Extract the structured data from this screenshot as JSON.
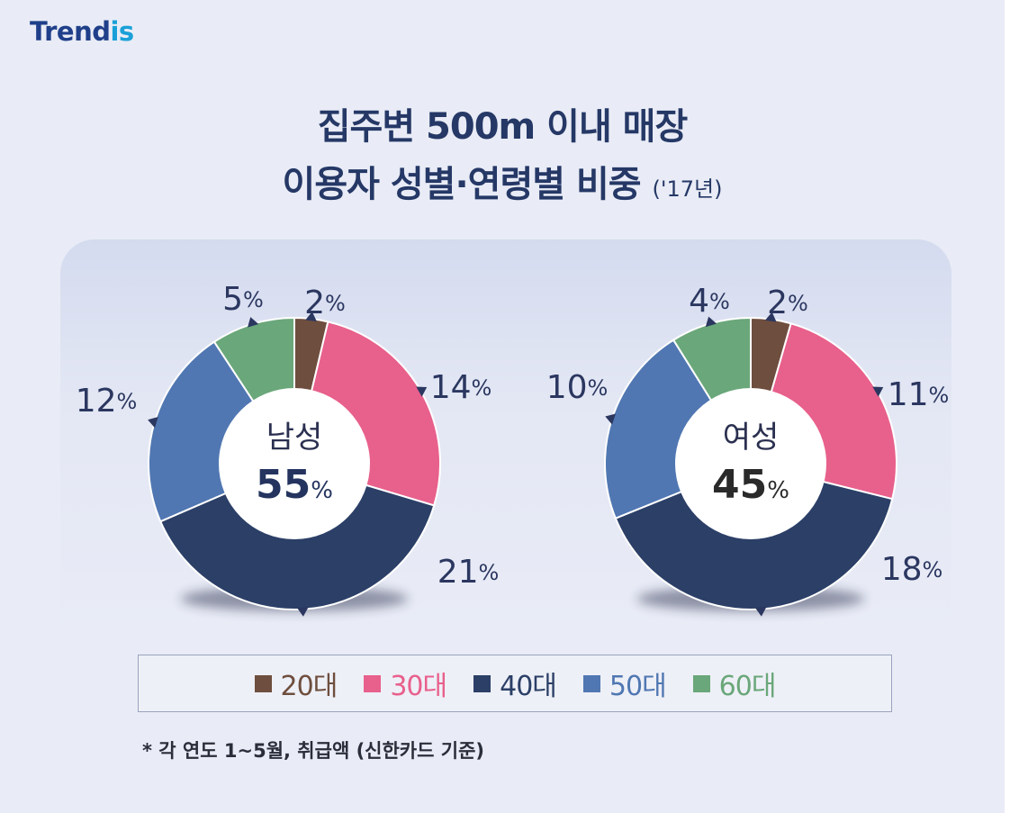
{
  "logo": {
    "part1": "Trend",
    "part2": "is"
  },
  "title": {
    "line1": "집주변 500m 이내 매장",
    "line2": "이용자 성별·연령별 비중",
    "year": "('17년)"
  },
  "chart_data": [
    {
      "type": "pie",
      "center_label": "남성",
      "center_value": "55",
      "center_unit": "%",
      "categories": [
        "20대",
        "30대",
        "40대",
        "50대",
        "60대"
      ],
      "values": [
        2,
        14,
        21,
        12,
        5
      ],
      "labels": [
        "2",
        "14",
        "21",
        "12",
        "5"
      ]
    },
    {
      "type": "pie",
      "center_label": "여성",
      "center_value": "45",
      "center_unit": "%",
      "categories": [
        "20대",
        "30대",
        "40대",
        "50대",
        "60대"
      ],
      "values": [
        2,
        11,
        18,
        10,
        4
      ],
      "labels": [
        "2",
        "11",
        "18",
        "10",
        "4"
      ]
    }
  ],
  "legend": [
    {
      "label": "20대",
      "color": "#6e4e3e"
    },
    {
      "label": "30대",
      "color": "#e8608c"
    },
    {
      "label": "40대",
      "color": "#2b3f67"
    },
    {
      "label": "50대",
      "color": "#5077b2"
    },
    {
      "label": "60대",
      "color": "#6aa77a"
    }
  ],
  "footnote": "* 각 연도 1~5월, 취급액 (신한카드 기준)"
}
